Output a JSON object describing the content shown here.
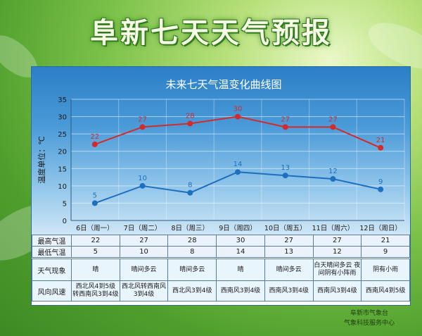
{
  "page": {
    "title": "阜新七天天气预报"
  },
  "chart_data": {
    "type": "line",
    "title": "未来七天气温变化曲线图",
    "ylabel": "温度单位：℃",
    "ylim": [
      0,
      35
    ],
    "yticks": [
      0,
      5,
      10,
      15,
      20,
      25,
      30,
      35
    ],
    "categories": [
      "6日（周一）",
      "7日（周二）",
      "8日（周三）",
      "9日（周四）",
      "10日（周五）",
      "11日（周六）",
      "12日（周日）"
    ],
    "series": [
      {
        "name": "最高气温",
        "values": [
          22,
          27,
          28,
          30,
          27,
          27,
          21
        ],
        "color": "#d42a2a"
      },
      {
        "name": "最低气温",
        "values": [
          5,
          10,
          8,
          14,
          13,
          12,
          9
        ],
        "color": "#1f6fbf"
      }
    ],
    "grid": true
  },
  "table": {
    "high_label": "最高气温",
    "low_label": "最低气温",
    "weather_label": "天气现象",
    "wind_label": "风向风速",
    "weather": [
      "晴",
      "晴间多云",
      "晴间多云",
      "晴",
      "晴间多云",
      "白天晴间多云 夜间阴有小阵雨",
      "阴有小雨"
    ],
    "wind": [
      "西北风4到5级 转西南风3到4级",
      "西北风转西南风 3到4级",
      "西北风3到4级",
      "西南风3到4级",
      "西南风3到4级",
      "西南风3到4级",
      "西南风4到5级"
    ]
  },
  "credit": {
    "line1": "阜新市气象台",
    "line2": "气象科技服务中心"
  }
}
